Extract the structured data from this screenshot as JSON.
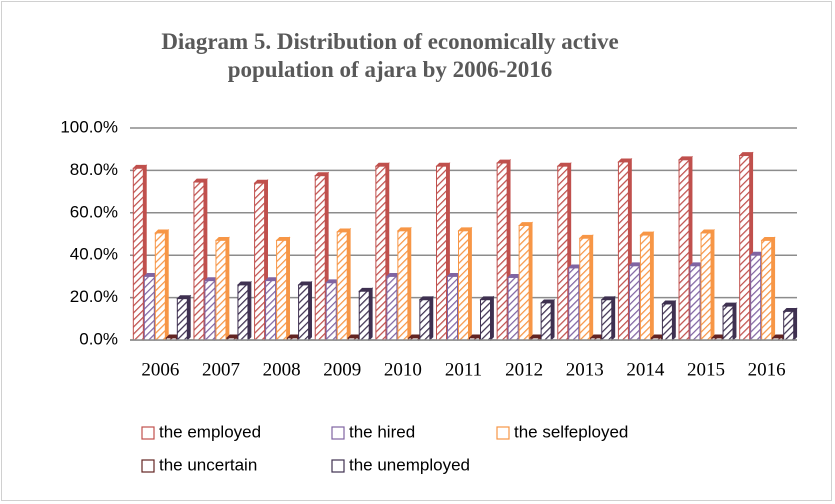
{
  "chart_data": {
    "type": "bar",
    "title": "Diagram 5. Distribution of economically active population of ajara by 2006-2016",
    "categories": [
      "2006",
      "2007",
      "2008",
      "2009",
      "2010",
      "2011",
      "2012",
      "2013",
      "2014",
      "2015",
      "2016"
    ],
    "series": [
      {
        "name": "the employed",
        "color": "#c0504d",
        "values": [
          81,
          74.5,
          74,
          77.5,
          82,
          82,
          83.5,
          82,
          84,
          85,
          87
        ]
      },
      {
        "name": "the hired",
        "color": "#8064a2",
        "values": [
          30,
          28,
          28,
          27,
          30,
          30,
          29.5,
          34,
          35,
          35,
          40
        ]
      },
      {
        "name": "the selfeployed",
        "color": "#f79646",
        "values": [
          50.5,
          47,
          47,
          51,
          51.5,
          51.5,
          54,
          48,
          49.5,
          50.5,
          47
        ]
      },
      {
        "name": "the uncertain",
        "color": "#632523",
        "values": [
          1,
          1,
          1,
          1,
          1,
          1,
          1,
          1,
          1,
          1,
          1
        ]
      },
      {
        "name": "the unemployed",
        "color": "#3f3151",
        "values": [
          19.5,
          26,
          26,
          23,
          19,
          19,
          17.5,
          19,
          17,
          16,
          13.5
        ]
      }
    ],
    "ylim": [
      0,
      100
    ],
    "yticks": [
      {
        "value": 0,
        "label": "0.0%"
      },
      {
        "value": 20,
        "label": "20.0%"
      },
      {
        "value": 40,
        "label": "40.0%"
      },
      {
        "value": 60,
        "label": "60.0%"
      },
      {
        "value": 80,
        "label": "80.0%"
      },
      {
        "value": 100,
        "label": "100.0%"
      }
    ],
    "grid": true
  }
}
